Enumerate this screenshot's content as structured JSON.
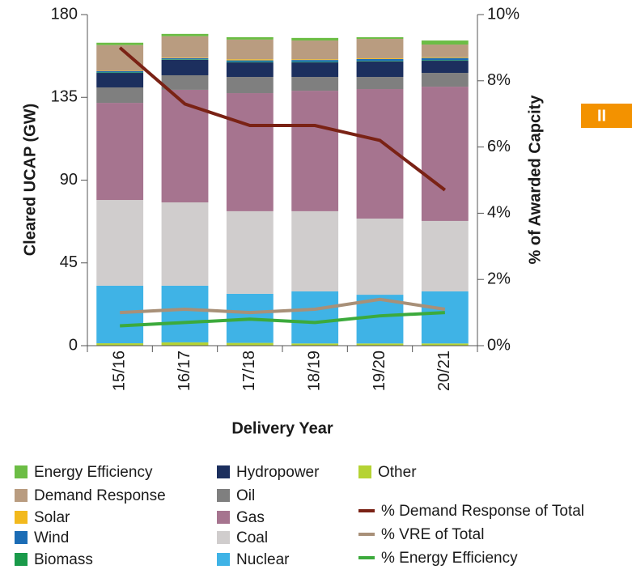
{
  "chart_data": {
    "type": "bar",
    "categories": [
      "15/16",
      "16/17",
      "17/18",
      "18/19",
      "19/20",
      "20/21"
    ],
    "x_label": "Delivery Year",
    "y_label": "Cleared UCAP (GW)",
    "y2_label": "% of Awarded Capcity",
    "ylim": [
      0,
      180
    ],
    "yticks": [
      0,
      45,
      90,
      135,
      180
    ],
    "y2lim": [
      0,
      10
    ],
    "y2ticks": [
      {
        "value": 0,
        "label": "0%"
      },
      {
        "value": 2,
        "label": "2%"
      },
      {
        "value": 4,
        "label": "4%"
      },
      {
        "value": 6,
        "label": "6%"
      },
      {
        "value": 8,
        "label": "8%"
      },
      {
        "value": 10,
        "label": "10%"
      }
    ],
    "stacked": true,
    "series": [
      {
        "name": "Other",
        "type": "bar",
        "color": "#b5d334",
        "values": [
          1.3,
          1.8,
          1.5,
          1.2,
          1.2,
          1.2
        ]
      },
      {
        "name": "Nuclear",
        "type": "bar",
        "color": "#3fb3e6",
        "values": [
          31.3,
          30.8,
          26.7,
          28.3,
          26.5,
          28.3
        ]
      },
      {
        "name": "Coal",
        "type": "bar",
        "color": "#d0cdcd",
        "values": [
          46.6,
          45.3,
          44.9,
          43.6,
          41.4,
          38.3
        ]
      },
      {
        "name": "Gas",
        "type": "bar",
        "color": "#a6748f",
        "values": [
          52.8,
          61.2,
          64.2,
          65.5,
          70.4,
          73.0
        ]
      },
      {
        "name": "Oil",
        "type": "bar",
        "color": "#7f7f7f",
        "values": [
          8.4,
          7.9,
          8.8,
          7.5,
          6.6,
          7.5
        ]
      },
      {
        "name": "Hydropower",
        "type": "bar",
        "color": "#1c2f5e",
        "values": [
          7.9,
          8.4,
          7.9,
          7.9,
          8.4,
          6.6
        ]
      },
      {
        "name": "Biomass",
        "type": "bar",
        "color": "#1a9a4a",
        "values": [
          0.3,
          0.3,
          0.3,
          0.3,
          0.3,
          0.3
        ]
      },
      {
        "name": "Wind",
        "type": "bar",
        "color": "#1b6cb5",
        "values": [
          0.6,
          0.6,
          0.8,
          1.0,
          1.0,
          1.2
        ]
      },
      {
        "name": "Solar",
        "type": "bar",
        "color": "#f2b91d",
        "values": [
          0.2,
          0.3,
          0.6,
          0.4,
          0.4,
          0.4
        ]
      },
      {
        "name": "Demand Response",
        "type": "bar",
        "color": "#b99c80",
        "values": [
          14.0,
          11.6,
          10.7,
          10.2,
          10.6,
          6.9
        ]
      },
      {
        "name": "Energy Efficiency",
        "type": "bar",
        "color": "#6cbd45",
        "values": [
          1.3,
          1.3,
          1.3,
          1.4,
          0.9,
          2.2
        ]
      },
      {
        "name": "% Demand Response of Total",
        "type": "line",
        "axis": "y2",
        "color": "#7a2215",
        "values": [
          9.0,
          7.3,
          6.65,
          6.65,
          6.2,
          4.7
        ]
      },
      {
        "name": "% VRE of Total",
        "type": "line",
        "axis": "y2",
        "color": "#a89078",
        "values": [
          1.0,
          1.1,
          1.0,
          1.1,
          1.4,
          1.1
        ]
      },
      {
        "name": "% Energy Efficiency",
        "type": "line",
        "axis": "y2",
        "color": "#3caa3c",
        "values": [
          0.6,
          0.7,
          0.8,
          0.7,
          0.9,
          1.0
        ]
      }
    ],
    "badge": "II"
  }
}
